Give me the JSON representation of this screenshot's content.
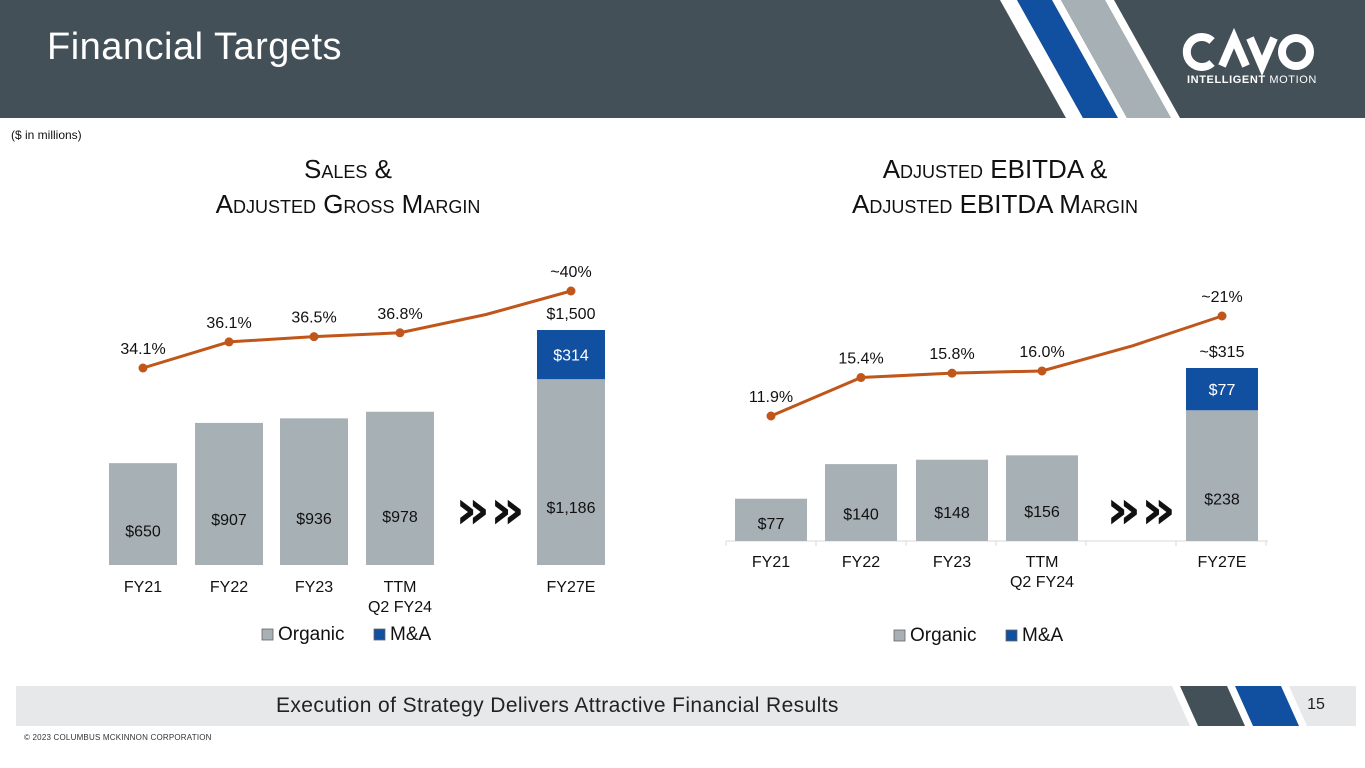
{
  "header": {
    "title": "Financial Targets",
    "logo_text_bold": "INTELLIGENT",
    "logo_text_light": "MOTION",
    "brand_colors": {
      "header": "#435058",
      "blue": "#1150a0",
      "gray": "#a7b0b5"
    }
  },
  "units_note": "($ in millions)",
  "chart_data": [
    {
      "type": "bar",
      "title_lines": [
        "Sales &",
        "Adjusted Gross Margin"
      ],
      "categories": [
        "FY21",
        "FY22",
        "FY23",
        "TTM\nQ2 FY24",
        "",
        "FY27E"
      ],
      "series": [
        {
          "name": "Organic",
          "color": "#a7b0b5",
          "values": [
            650,
            907,
            936,
            978,
            null,
            1186
          ],
          "labels": [
            "$650",
            "$907",
            "$936",
            "$978",
            "",
            "$1,186"
          ]
        },
        {
          "name": "M&A",
          "color": "#1150a0",
          "values": [
            0,
            0,
            0,
            0,
            null,
            314
          ],
          "labels": [
            "",
            "",
            "",
            "",
            "",
            "$314"
          ]
        }
      ],
      "totals": [
        "",
        "",
        "",
        "",
        "",
        "$1,500"
      ],
      "line": {
        "name": "Adjusted Gross Margin",
        "color": "#c0561a",
        "values": [
          34.1,
          36.1,
          36.5,
          36.8,
          38.2,
          40.0
        ],
        "markers": [
          true,
          true,
          true,
          true,
          false,
          true
        ],
        "labels": [
          "34.1%",
          "36.1%",
          "36.5%",
          "36.8%",
          "",
          "~40%"
        ]
      },
      "arrow_glyph": "»»",
      "legend": [
        "Organic",
        "M&A"
      ],
      "ylim": [
        0,
        1500
      ]
    },
    {
      "type": "bar",
      "title_lines": [
        "Adjusted EBITDA &",
        "Adjusted EBITDA Margin"
      ],
      "categories": [
        "FY21",
        "FY22",
        "FY23",
        "TTM\nQ2 FY24",
        "",
        "FY27E"
      ],
      "series": [
        {
          "name": "Organic",
          "color": "#a7b0b5",
          "values": [
            77,
            140,
            148,
            156,
            null,
            238
          ],
          "labels": [
            "$77",
            "$140",
            "$148",
            "$156",
            "",
            "$238"
          ]
        },
        {
          "name": "M&A",
          "color": "#1150a0",
          "values": [
            0,
            0,
            0,
            0,
            null,
            77
          ],
          "labels": [
            "",
            "",
            "",
            "",
            "",
            "$77"
          ]
        }
      ],
      "totals": [
        "",
        "",
        "",
        "",
        "",
        "~$315"
      ],
      "line": {
        "name": "Adjusted EBITDA Margin",
        "color": "#c0561a",
        "values": [
          11.9,
          15.4,
          15.8,
          16.0,
          18.3,
          21.0
        ],
        "markers": [
          true,
          true,
          true,
          true,
          false,
          true
        ],
        "labels": [
          "11.9%",
          "15.4%",
          "15.8%",
          "16.0%",
          "",
          "~21%"
        ]
      },
      "arrow_glyph": "»»",
      "legend": [
        "Organic",
        "M&A"
      ],
      "ylim": [
        0,
        315
      ]
    }
  ],
  "footer": {
    "text": "Execution of Strategy Delivers Attractive Financial Results",
    "page_number": "15",
    "copyright": "© 2023 COLUMBUS MCKINNON CORPORATION"
  }
}
